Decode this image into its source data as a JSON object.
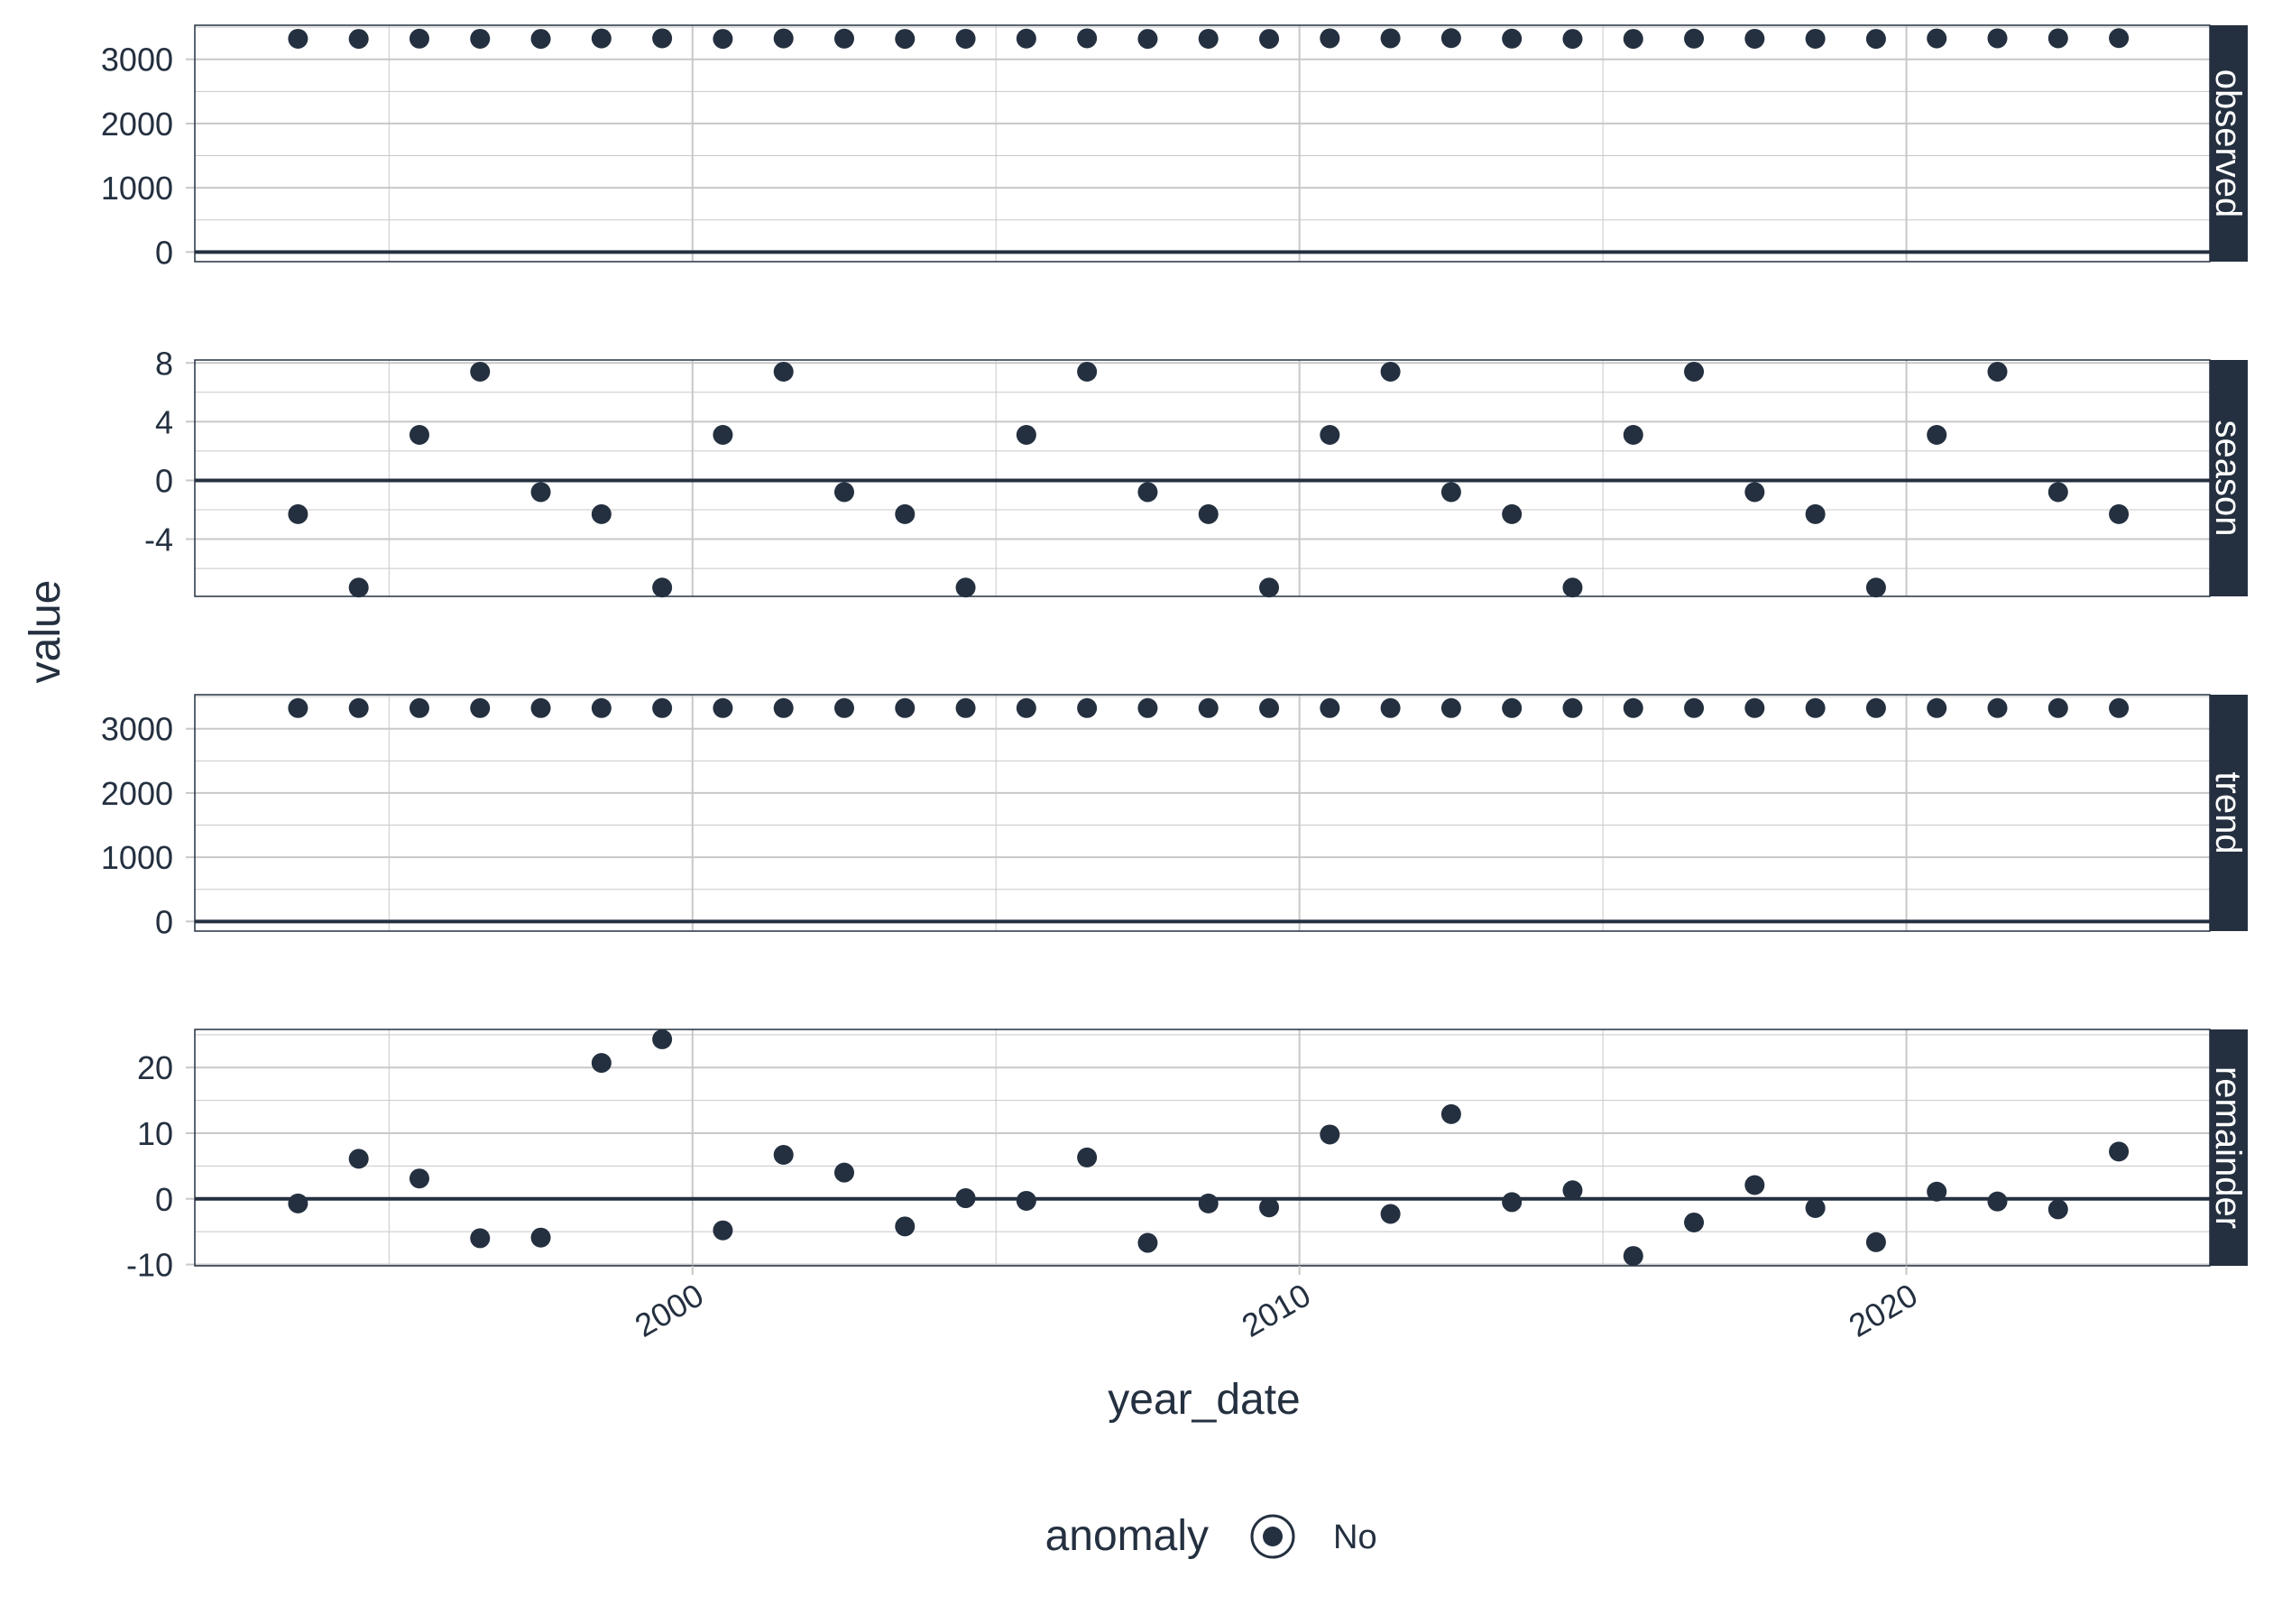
{
  "chart_data": {
    "type": "scatter",
    "xlabel": "year_date",
    "ylabel": "value",
    "x_ticks": [
      "2000",
      "2010",
      "2020"
    ],
    "x_tick_values": [
      2000,
      2010,
      2020
    ],
    "xlim": [
      1991.8,
      2025
    ],
    "x": [
      1993.5,
      1994.5,
      1995.5,
      1996.5,
      1997.5,
      1998.5,
      1999.5,
      2000.5,
      2001.5,
      2002.5,
      2003.5,
      2004.5,
      2005.5,
      2006.5,
      2007.5,
      2008.5,
      2009.5,
      2010.5,
      2011.5,
      2012.5,
      2013.5,
      2014.5,
      2015.5,
      2016.5,
      2017.5,
      2018.5,
      2019.5,
      2020.5,
      2021.5,
      2022.5,
      2023.5
    ],
    "facets": [
      {
        "name": "observed",
        "ylim": [
          -150,
          3530
        ],
        "y_ticks": [
          0,
          1000,
          2000,
          3000
        ],
        "y_tick_labels": [
          "0",
          "1000",
          "2000",
          "3000"
        ],
        "values": [
          3320,
          3318,
          3322,
          3320,
          3318,
          3325,
          3327,
          3318,
          3325,
          3322,
          3318,
          3320,
          3323,
          3327,
          3318,
          3320,
          3318,
          3327,
          3327,
          3330,
          3322,
          3318,
          3318,
          3322,
          3320,
          3320,
          3318,
          3325,
          3327,
          3327,
          3330
        ]
      },
      {
        "name": "season",
        "ylim": [
          -7.9,
          8.2
        ],
        "y_ticks": [
          -4,
          0,
          4,
          8
        ],
        "y_tick_labels": [
          "-4",
          "0",
          "4",
          "8"
        ],
        "values": [
          -2.3,
          -7.3,
          3.1,
          7.4,
          -0.8,
          -2.3,
          -7.3,
          3.1,
          7.4,
          -0.8,
          -2.3,
          -7.3,
          3.1,
          7.4,
          -0.8,
          -2.3,
          -7.3,
          3.1,
          7.4,
          -0.8,
          -2.3,
          -7.3,
          3.1,
          7.4,
          -0.8,
          -2.3,
          -7.3,
          3.1,
          7.4,
          -0.8,
          -2.3
        ]
      },
      {
        "name": "trend",
        "ylim": [
          -150,
          3530
        ],
        "y_ticks": [
          0,
          1000,
          2000,
          3000
        ],
        "y_tick_labels": [
          "0",
          "1000",
          "2000",
          "3000"
        ],
        "values": [
          3322,
          3322,
          3322,
          3322,
          3322,
          3322,
          3322,
          3322,
          3322,
          3322,
          3322,
          3322,
          3322,
          3322,
          3322,
          3322,
          3322,
          3322,
          3322,
          3322,
          3322,
          3322,
          3322,
          3322,
          3322,
          3322,
          3322,
          3322,
          3322,
          3322,
          3322
        ]
      },
      {
        "name": "remainder",
        "ylim": [
          -10.2,
          25.8
        ],
        "y_ticks": [
          -10,
          0,
          10,
          20
        ],
        "y_tick_labels": [
          "-10",
          "0",
          "10",
          "20"
        ],
        "values": [
          -0.7,
          6.1,
          3.1,
          -6.0,
          -5.9,
          20.7,
          24.3,
          -4.8,
          6.7,
          4.0,
          -4.2,
          0.1,
          -0.3,
          6.3,
          -6.7,
          -0.7,
          -1.3,
          9.8,
          -2.3,
          12.9,
          -0.5,
          1.3,
          -8.7,
          -3.6,
          2.1,
          -1.4,
          -6.6,
          1.1,
          -0.4,
          -1.6,
          7.2
        ]
      }
    ],
    "legend": {
      "title": "anomaly",
      "entries": [
        "No"
      ],
      "placement": "bottom"
    },
    "grid": true
  },
  "colors": {
    "point": "#243040",
    "strip_background": "#243040",
    "strip_text": "#ffffff",
    "grid": "#c8c8c8",
    "zero_line": "#243040",
    "panel_border": "#243040",
    "text": "#243040"
  }
}
